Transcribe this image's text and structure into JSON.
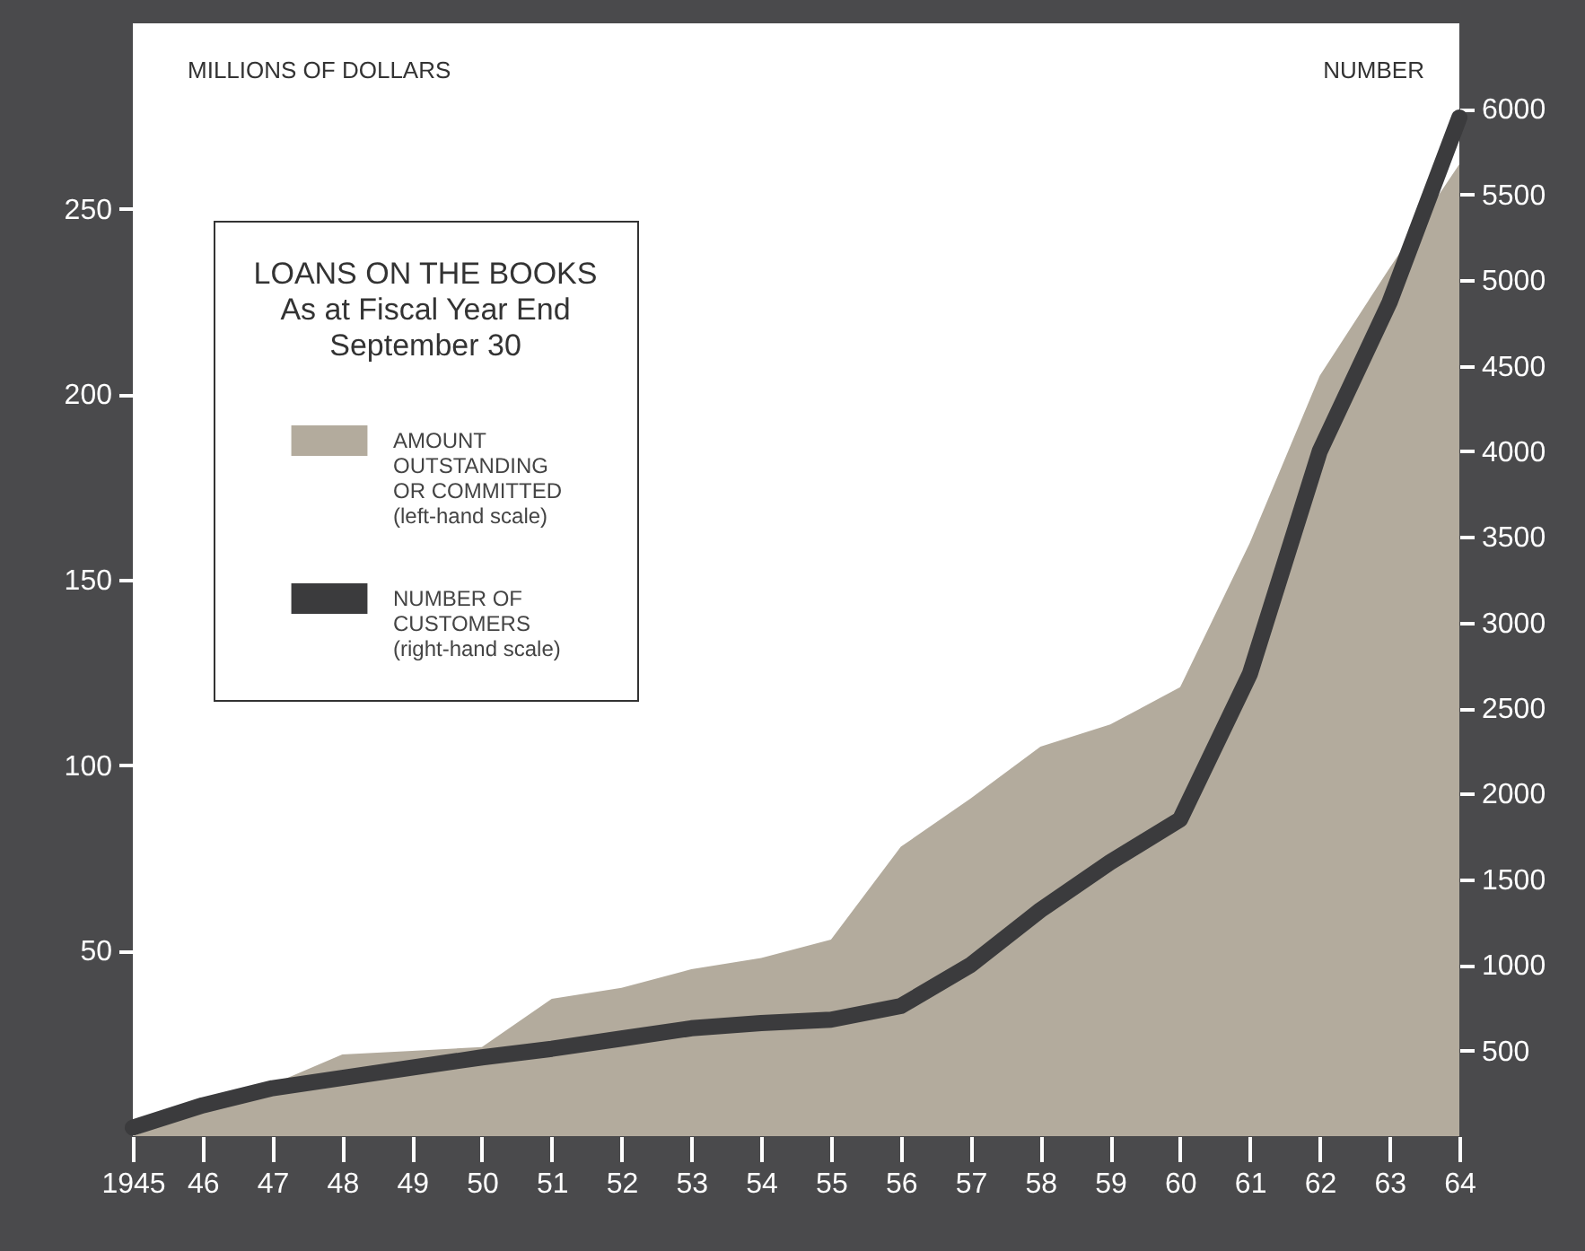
{
  "chart_data": {
    "type": "area",
    "title": "LOANS ON THE BOOKS",
    "subtitle": "As at Fiscal Year End\nSeptember 30",
    "ylabel": "MILLIONS OF DOLLARS",
    "y2label": "NUMBER",
    "x": [
      1945,
      1946,
      1947,
      1948,
      1949,
      1950,
      1951,
      1952,
      1953,
      1954,
      1955,
      1956,
      1957,
      1958,
      1959,
      1960,
      1961,
      1962,
      1963,
      1964
    ],
    "series": [
      {
        "name": "AMOUNT\nOUTSTANDING\nOR COMMITTED\n(left-hand scale)",
        "color": "#b3ab9d",
        "values": [
          0,
          7,
          14,
          22,
          23,
          24,
          37,
          40,
          45,
          48,
          53,
          78,
          91,
          105,
          111,
          121,
          160,
          205,
          234,
          262
        ]
      },
      {
        "name": "NUMBER OF\nCUSTOMERS\n(right-hand scale)",
        "type": "line",
        "axis": "y2",
        "color": "#3b3b3d",
        "values": [
          50,
          180,
          280,
          340,
          400,
          460,
          510,
          570,
          630,
          660,
          680,
          760,
          1000,
          1320,
          1600,
          1850,
          2700,
          4000,
          4870,
          5950
        ]
      }
    ],
    "xlim": [
      1945,
      1964
    ],
    "xticks": [
      {
        "value": 1945,
        "label": "1945"
      },
      {
        "value": 1946,
        "label": "46"
      },
      {
        "value": 1947,
        "label": "47"
      },
      {
        "value": 1948,
        "label": "48"
      },
      {
        "value": 1949,
        "label": "49"
      },
      {
        "value": 1950,
        "label": "50"
      },
      {
        "value": 1951,
        "label": "51"
      },
      {
        "value": 1952,
        "label": "52"
      },
      {
        "value": 1953,
        "label": "53"
      },
      {
        "value": 1954,
        "label": "54"
      },
      {
        "value": 1955,
        "label": "55"
      },
      {
        "value": 1956,
        "label": "56"
      },
      {
        "value": 1957,
        "label": "57"
      },
      {
        "value": 1958,
        "label": "58"
      },
      {
        "value": 1959,
        "label": "59"
      },
      {
        "value": 1960,
        "label": "60"
      },
      {
        "value": 1961,
        "label": "61"
      },
      {
        "value": 1962,
        "label": "62"
      },
      {
        "value": 1963,
        "label": "63"
      },
      {
        "value": 1964,
        "label": "64"
      }
    ],
    "ylim": [
      0,
      300
    ],
    "yticks": [
      50,
      100,
      150,
      200,
      250
    ],
    "y2lim": [
      0,
      6500
    ],
    "y2ticks": [
      500,
      1000,
      1500,
      2000,
      2500,
      3000,
      3500,
      4000,
      4500,
      5000,
      5500,
      6000
    ],
    "grid": false,
    "legend": "top left",
    "line_style": "solid",
    "marker": "none"
  }
}
